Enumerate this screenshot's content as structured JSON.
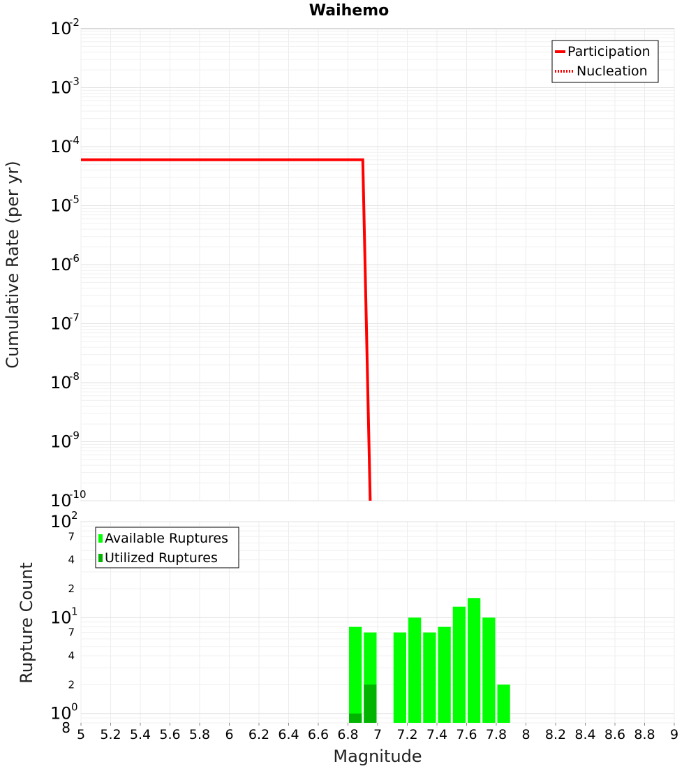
{
  "chart_data": [
    {
      "type": "line",
      "title": "Waihemo",
      "xlabel": "",
      "ylabel": "Cumulative Rate (per yr)",
      "xlim": [
        5,
        9
      ],
      "ylim": [
        1e-10,
        0.01
      ],
      "yscale": "log",
      "grid": true,
      "legend_position": "top-right",
      "y_tick_exponents": [
        "-2",
        "-3",
        "-4",
        "-5",
        "-6",
        "-7",
        "-8",
        "-9",
        "-10"
      ],
      "y_tick_base": "10",
      "series": [
        {
          "name": "Participation",
          "style": "solid",
          "color": "#ff0000",
          "x": [
            5.0,
            6.9,
            6.95
          ],
          "y": [
            6e-05,
            6e-05,
            1e-10
          ]
        },
        {
          "name": "Nucleation",
          "style": "dotted",
          "color": "#ff0000",
          "x": [
            5.0,
            6.9,
            6.95
          ],
          "y": [
            6e-05,
            6e-05,
            1e-10
          ]
        }
      ]
    },
    {
      "type": "bar",
      "title": "",
      "xlabel": "Magnitude",
      "ylabel": "Rupture Count",
      "xlim": [
        5,
        9
      ],
      "ylim": [
        0.8,
        100
      ],
      "yscale": "log",
      "grid": true,
      "legend_position": "top-left",
      "x_ticks": [
        "5",
        "5.2",
        "5.4",
        "5.6",
        "5.8",
        "6",
        "6.2",
        "6.4",
        "6.6",
        "6.8",
        "7",
        "7.2",
        "7.4",
        "7.6",
        "7.8",
        "8",
        "8.2",
        "8.4",
        "8.6",
        "8.8",
        "9"
      ],
      "y_major_ticks": [
        {
          "value": 100,
          "base": "10",
          "exp": "2"
        },
        {
          "value": 10,
          "base": "10",
          "exp": "1"
        },
        {
          "value": 1,
          "base": "10",
          "exp": "0"
        }
      ],
      "y_minor_ticks": [
        {
          "value": 70,
          "label": "7"
        },
        {
          "value": 40,
          "label": "4"
        },
        {
          "value": 20,
          "label": "2"
        },
        {
          "value": 7,
          "label": "7"
        },
        {
          "value": 4,
          "label": "4"
        },
        {
          "value": 2,
          "label": "2"
        },
        {
          "value": 0.8,
          "label": "8"
        }
      ],
      "bin_width": 0.1,
      "series": [
        {
          "name": "Available Ruptures",
          "color": "#00ff00",
          "x": [
            6.85,
            6.95,
            7.15,
            7.25,
            7.35,
            7.45,
            7.55,
            7.65,
            7.75,
            7.85
          ],
          "values": [
            8,
            7,
            7,
            10,
            7,
            8,
            13,
            16,
            10,
            2
          ]
        },
        {
          "name": "Utilized Ruptures",
          "color": "#00b400",
          "x": [
            6.85,
            6.95
          ],
          "values": [
            1,
            2
          ]
        }
      ]
    }
  ]
}
